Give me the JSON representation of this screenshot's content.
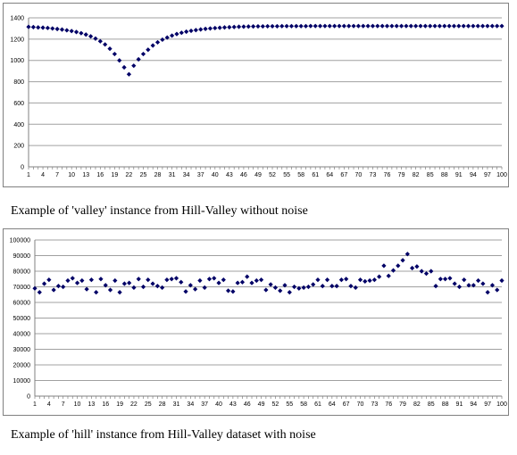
{
  "chart_data": [
    {
      "type": "scatter",
      "caption": "Example of 'valley' instance from Hill-Valley without noise",
      "ylim": [
        0,
        1400
      ],
      "yticks": [
        0,
        200,
        400,
        600,
        800,
        1000,
        1200,
        1400
      ],
      "xtick_labels": [
        1,
        4,
        7,
        10,
        13,
        16,
        19,
        22,
        25,
        28,
        31,
        34,
        37,
        40,
        43,
        46,
        49,
        52,
        55,
        58,
        61,
        64,
        67,
        70,
        73,
        76,
        79,
        82,
        85,
        88,
        91,
        94,
        97,
        100
      ],
      "grid": true,
      "marker_color": "#000066",
      "x": [
        1,
        2,
        3,
        4,
        5,
        6,
        7,
        8,
        9,
        10,
        11,
        12,
        13,
        14,
        15,
        16,
        17,
        18,
        19,
        20,
        21,
        22,
        23,
        24,
        25,
        26,
        27,
        28,
        29,
        30,
        31,
        32,
        33,
        34,
        35,
        36,
        37,
        38,
        39,
        40,
        41,
        42,
        43,
        44,
        45,
        46,
        47,
        48,
        49,
        50,
        51,
        52,
        53,
        54,
        55,
        56,
        57,
        58,
        59,
        60,
        61,
        62,
        63,
        64,
        65,
        66,
        67,
        68,
        69,
        70,
        71,
        72,
        73,
        74,
        75,
        76,
        77,
        78,
        79,
        80,
        81,
        82,
        83,
        84,
        85,
        86,
        87,
        88,
        89,
        90,
        91,
        92,
        93,
        94,
        95,
        96,
        97,
        98,
        99,
        100
      ],
      "y": [
        1315,
        1313,
        1310,
        1308,
        1305,
        1300,
        1295,
        1290,
        1283,
        1276,
        1267,
        1256,
        1243,
        1226,
        1205,
        1180,
        1150,
        1110,
        1060,
        1000,
        935,
        870,
        950,
        1010,
        1060,
        1100,
        1140,
        1170,
        1195,
        1215,
        1233,
        1248,
        1260,
        1270,
        1278,
        1285,
        1291,
        1296,
        1300,
        1304,
        1307,
        1310,
        1312,
        1314,
        1316,
        1317,
        1318,
        1319,
        1320,
        1320,
        1321,
        1321,
        1321,
        1322,
        1322,
        1322,
        1322,
        1322,
        1322,
        1323,
        1323,
        1323,
        1323,
        1323,
        1323,
        1323,
        1323,
        1323,
        1323,
        1323,
        1323,
        1323,
        1323,
        1323,
        1323,
        1323,
        1323,
        1323,
        1323,
        1323,
        1323,
        1323,
        1323,
        1323,
        1323,
        1323,
        1323,
        1323,
        1323,
        1323,
        1323,
        1323,
        1323,
        1323,
        1323,
        1323,
        1323,
        1323,
        1323,
        1323
      ]
    },
    {
      "type": "scatter",
      "caption": "Example of 'hill' instance from Hill-Valley dataset with noise",
      "ylim": [
        0,
        100000
      ],
      "yticks": [
        0,
        10000,
        20000,
        30000,
        40000,
        50000,
        60000,
        70000,
        80000,
        90000,
        100000
      ],
      "xtick_labels": [
        1,
        4,
        7,
        10,
        13,
        16,
        19,
        22,
        25,
        28,
        31,
        34,
        37,
        40,
        43,
        46,
        49,
        52,
        55,
        58,
        61,
        64,
        67,
        70,
        73,
        76,
        79,
        82,
        85,
        88,
        91,
        94,
        97,
        100
      ],
      "grid": true,
      "marker_color": "#000066",
      "x": [
        1,
        2,
        3,
        4,
        5,
        6,
        7,
        8,
        9,
        10,
        11,
        12,
        13,
        14,
        15,
        16,
        17,
        18,
        19,
        20,
        21,
        22,
        23,
        24,
        25,
        26,
        27,
        28,
        29,
        30,
        31,
        32,
        33,
        34,
        35,
        36,
        37,
        38,
        39,
        40,
        41,
        42,
        43,
        44,
        45,
        46,
        47,
        48,
        49,
        50,
        51,
        52,
        53,
        54,
        55,
        56,
        57,
        58,
        59,
        60,
        61,
        62,
        63,
        64,
        65,
        66,
        67,
        68,
        69,
        70,
        71,
        72,
        73,
        74,
        75,
        76,
        77,
        78,
        79,
        80,
        81,
        82,
        83,
        84,
        85,
        86,
        87,
        88,
        89,
        90,
        91,
        92,
        93,
        94,
        95,
        96,
        97,
        98,
        99,
        100
      ],
      "y": [
        69000,
        66500,
        72000,
        74500,
        68000,
        70500,
        70000,
        74000,
        75500,
        72500,
        74000,
        68500,
        74500,
        66500,
        75000,
        71000,
        68000,
        74000,
        66500,
        72000,
        72500,
        69500,
        75000,
        70000,
        74500,
        72000,
        70500,
        69500,
        74500,
        75000,
        75500,
        73000,
        67000,
        71000,
        68500,
        74000,
        69500,
        75000,
        75500,
        72500,
        74500,
        67500,
        67000,
        72500,
        73000,
        76500,
        72500,
        74000,
        74500,
        68000,
        71500,
        69500,
        67500,
        71000,
        66500,
        70000,
        69000,
        69500,
        70000,
        71500,
        74500,
        70500,
        74500,
        70500,
        70500,
        74500,
        75000,
        70500,
        69500,
        74500,
        73500,
        74000,
        74500,
        76500,
        83500,
        77000,
        80500,
        83500,
        87000,
        91000,
        82000,
        83000,
        80000,
        78500,
        80000,
        70500,
        75000,
        75000,
        75500,
        72000,
        70000,
        74500,
        71000,
        71000,
        74000,
        72000,
        66500,
        71000,
        68000,
        74000
      ]
    }
  ]
}
